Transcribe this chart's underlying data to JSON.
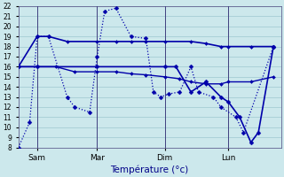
{
  "xlabel": "Température (°c)",
  "background_color": "#cce8ec",
  "grid_color": "#9dc8d0",
  "line_color": "#0000aa",
  "xlim": [
    0,
    35
  ],
  "ylim": [
    8,
    22
  ],
  "yticks": [
    8,
    9,
    10,
    11,
    12,
    13,
    14,
    15,
    16,
    17,
    18,
    19,
    20,
    21,
    22
  ],
  "day_labels": [
    "Sam",
    "Mar",
    "Dim",
    "Lun"
  ],
  "day_positions": [
    2.5,
    10.5,
    19.5,
    28.0
  ],
  "vline_positions": [
    2.5,
    10.5,
    19.5,
    28.0
  ],
  "series": [
    {
      "comment": "zigzag dotted line: 8->10.5->19->19->13->12->11.5->17->21.5->21.8->...",
      "x": [
        0,
        1.5,
        2.5,
        4,
        6.5,
        7.5,
        9.5,
        10.5,
        11.5,
        13,
        15,
        17,
        18,
        19,
        20,
        21.5,
        23,
        24,
        26,
        27,
        29,
        30,
        34
      ],
      "y": [
        8,
        10.5,
        19,
        19,
        13,
        12,
        11.5,
        17,
        21.5,
        21.8,
        19,
        18.8,
        13.5,
        13,
        13.3,
        13.5,
        16,
        13.5,
        13,
        12,
        11,
        9.5,
        18
      ],
      "linestyle": "dotted",
      "linewidth": 0.9,
      "marker": "D",
      "markersize": 2.5
    },
    {
      "x": [
        0,
        2.5,
        4,
        6.5,
        10.5,
        13,
        15,
        17,
        19.5,
        23,
        25,
        27,
        28,
        31,
        34
      ],
      "y": [
        16,
        19,
        19,
        18.5,
        18.5,
        18.5,
        18.5,
        18.5,
        18.5,
        18.5,
        18.3,
        18,
        18,
        18,
        18
      ],
      "linestyle": "solid",
      "linewidth": 1.2,
      "marker": "D",
      "markersize": 2.0
    },
    {
      "x": [
        0,
        2.5,
        5,
        7.5,
        10.5,
        13,
        15,
        17,
        19.5,
        21.5,
        23,
        25,
        27,
        28,
        31,
        34
      ],
      "y": [
        16,
        16,
        16,
        15.5,
        15.5,
        15.5,
        15.3,
        15.2,
        15,
        14.8,
        14.5,
        14.3,
        14.3,
        14.5,
        14.5,
        15
      ],
      "linestyle": "solid",
      "linewidth": 1.0,
      "marker": "D",
      "markersize": 2.0
    },
    {
      "x": [
        0,
        2.5,
        10.5,
        19.5,
        21,
        23,
        25,
        27,
        28,
        29.5,
        31,
        32,
        34
      ],
      "y": [
        16,
        16,
        16,
        16,
        16,
        13.5,
        14.5,
        13,
        12.5,
        11,
        8.5,
        9.5,
        18
      ],
      "linestyle": "solid",
      "linewidth": 1.2,
      "marker": "D",
      "markersize": 2.5
    }
  ]
}
